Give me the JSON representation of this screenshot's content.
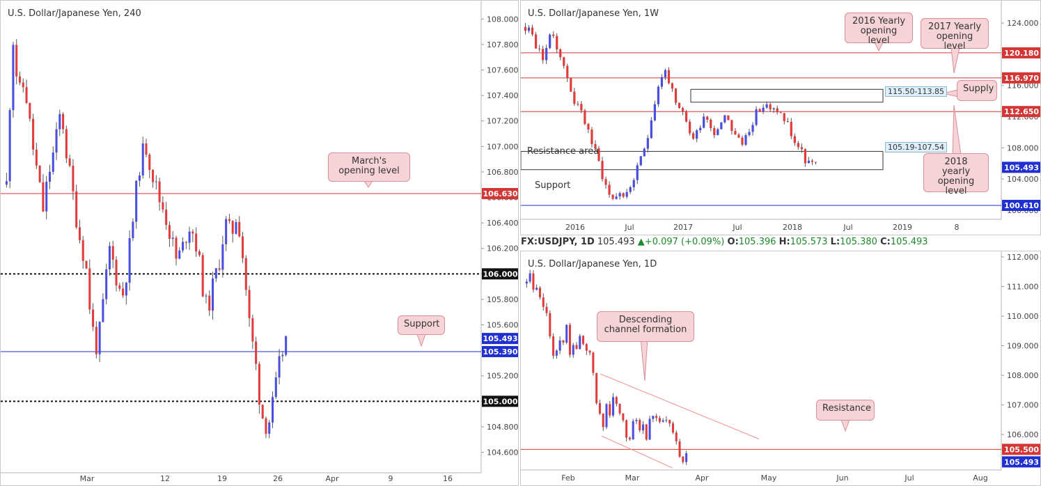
{
  "panels": {
    "left": {
      "title": "U.S. Dollar/Japanese Yen, 240",
      "notes": {
        "march": "March's opening level",
        "support": "Support"
      }
    },
    "top_right": {
      "title": "U.S. Dollar/Japanese Yen, 1W",
      "notes": {
        "y2016": "2016 Yearly opening level",
        "y2017": "2017 Yearly opening level",
        "supply": "Supply",
        "y2018": "2018 yearly opening level"
      },
      "boxes": {
        "supply": "115.50-113.85",
        "resist": "105.19-107.54"
      },
      "text_labels": {
        "resist": "Resistance area",
        "support": "Support"
      }
    },
    "bottom_right": {
      "title": "U.S. Dollar/Japanese Yen, 1D",
      "notes": {
        "channel": "Descending channel formation",
        "resistance": "Resistance"
      }
    }
  },
  "info_bar": {
    "symbol": "FX:USDJPY, 1D",
    "last": "105.493",
    "change": "+0.097 (+0.09%)",
    "o_label": "O:",
    "o": "105.396",
    "h_label": "H:",
    "h": "105.573",
    "l_label": "L:",
    "l": "105.380",
    "c_label": "C:",
    "c": "105.493"
  },
  "colors": {
    "up": "#4a4ee0",
    "down": "#e03c3c",
    "level": "#d43535",
    "support_line": "#1f2fd0"
  },
  "chart_data": [
    {
      "type": "candlestick",
      "title": "U.S. Dollar/Japanese Yen, 240",
      "ylim": [
        104.45,
        108.1
      ],
      "y_ticks": [
        "108.000",
        "107.800",
        "107.600",
        "107.400",
        "107.200",
        "107.000",
        "106.800",
        "106.600",
        "106.400",
        "106.200",
        "106.000",
        "105.800",
        "105.600",
        "105.400",
        "105.200",
        "105.000",
        "104.800",
        "104.600"
      ],
      "x_ticks": [
        "Mar",
        "12",
        "19",
        "26",
        "Apr",
        "9",
        "16"
      ],
      "levels": [
        {
          "value": 106.63,
          "label": "106.630",
          "style": "red"
        },
        {
          "value": 106.0,
          "label": "106.000",
          "style": "dotted"
        },
        {
          "value": 105.39,
          "label": "105.390",
          "style": "blue"
        },
        {
          "value": 105.0,
          "label": "105.000",
          "style": "dotted"
        }
      ],
      "price_tag": {
        "value": 105.493,
        "label": "105.493"
      },
      "close_path": [
        106.7,
        107.9,
        107.4,
        107.5,
        107.1,
        106.8,
        106.5,
        106.8,
        107.0,
        107.3,
        106.9,
        106.6,
        106.3,
        106.1,
        105.6,
        105.4,
        105.8,
        106.2,
        106.0,
        105.8,
        106.1,
        106.5,
        106.9,
        107.0,
        106.8,
        106.6,
        106.5,
        106.3,
        106.1,
        106.2,
        106.4,
        106.3,
        106.0,
        105.7,
        105.9,
        106.1,
        106.4,
        106.3,
        106.5,
        106.1,
        105.6,
        105.3,
        104.9,
        104.8,
        105.0,
        105.3,
        105.5
      ]
    },
    {
      "type": "candlestick",
      "title": "U.S. Dollar/Japanese Yen, 1W",
      "ylim": [
        99.0,
        125.8
      ],
      "y_ticks": [
        "124.000",
        "120.000",
        "116.000",
        "112.000",
        "108.000",
        "104.000",
        "100.000"
      ],
      "x_ticks": [
        "2016",
        "Jul",
        "2017",
        "Jul",
        "2018",
        "Jul",
        "2019",
        "8"
      ],
      "levels": [
        {
          "value": 120.18,
          "label": "120.180",
          "style": "red"
        },
        {
          "value": 116.97,
          "label": "116.970",
          "style": "red"
        },
        {
          "value": 112.65,
          "label": "112.650",
          "style": "red"
        },
        {
          "value": 100.61,
          "label": "100.610",
          "style": "blue"
        }
      ],
      "zones": [
        {
          "from": 113.85,
          "to": 115.5
        },
        {
          "from": 105.19,
          "to": 107.54
        }
      ],
      "price_tag": {
        "value": 105.493,
        "label": "105.493"
      },
      "close_path": [
        123.5,
        123.0,
        121.0,
        119.5,
        121.5,
        122.5,
        120.5,
        118.0,
        116.0,
        113.5,
        112.5,
        111.0,
        108.5,
        106.5,
        104.0,
        102.0,
        101.5,
        102.5,
        101.5,
        103.5,
        105.0,
        107.0,
        110.0,
        113.5,
        116.5,
        118.0,
        116.0,
        113.0,
        112.5,
        111.0,
        109.0,
        110.5,
        112.5,
        111.0,
        110.0,
        111.5,
        112.5,
        110.5,
        109.0,
        108.5,
        110.5,
        112.0,
        113.0,
        113.5,
        112.5,
        113.0,
        112.0,
        111.0,
        109.0,
        108.0,
        106.5,
        106.0,
        105.5
      ]
    },
    {
      "type": "candlestick",
      "title": "U.S. Dollar/Japanese Yen, 1D",
      "ylim": [
        104.85,
        112.0
      ],
      "y_ticks": [
        "112.000",
        "111.000",
        "110.000",
        "109.000",
        "108.000",
        "107.000",
        "106.000"
      ],
      "x_ticks": [
        "Feb",
        "Mar",
        "Apr",
        "May",
        "Jun",
        "Jul",
        "Aug"
      ],
      "levels": [
        {
          "value": 105.5,
          "label": "105.500",
          "style": "red"
        }
      ],
      "price_tag": {
        "value": 105.493,
        "label": "105.493"
      },
      "close_path": [
        111.1,
        111.4,
        110.6,
        110.9,
        110.3,
        110.4,
        109.6,
        108.9,
        108.7,
        109.0,
        109.2,
        109.6,
        108.7,
        109.3,
        108.8,
        109.4,
        108.6,
        108.9,
        108.2,
        107.4,
        106.7,
        106.2,
        107.0,
        106.6,
        107.3,
        106.9,
        106.6,
        106.1,
        105.8,
        106.3,
        106.8,
        106.2,
        106.4,
        106.0,
        106.6,
        106.8,
        106.5,
        106.2,
        106.5,
        106.4,
        106.1,
        105.8,
        105.3,
        105.2,
        105.5
      ]
    }
  ]
}
